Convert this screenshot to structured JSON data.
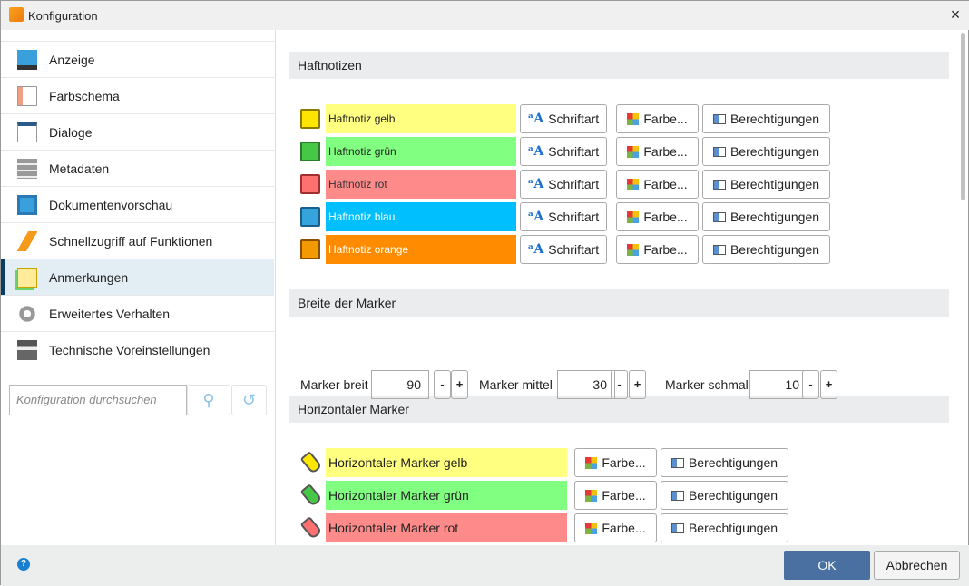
{
  "window": {
    "title": "Konfiguration",
    "close": "×"
  },
  "sidebar": {
    "items": [
      {
        "label": "Anzeige",
        "icon": "monitor-icon"
      },
      {
        "label": "Farbschema",
        "icon": "color-scheme-icon"
      },
      {
        "label": "Dialoge",
        "icon": "dialog-eye-icon"
      },
      {
        "label": "Metadaten",
        "icon": "metadata-list-icon"
      },
      {
        "label": "Dokumentenvorschau",
        "icon": "document-icon"
      },
      {
        "label": "Schnellzugriff auf Funktionen",
        "icon": "lightning-icon"
      },
      {
        "label": "Anmerkungen",
        "icon": "sticky-notes-icon",
        "selected": true
      },
      {
        "label": "Erweitertes Verhalten",
        "icon": "gears-icon"
      },
      {
        "label": "Technische Voreinstellungen",
        "icon": "technician-icon"
      }
    ],
    "search_placeholder": "Konfiguration durchsuchen"
  },
  "sections": {
    "notes": "Haftnotizen",
    "marker_width": "Breite der Marker",
    "horizontal": "Horizontaler Marker"
  },
  "buttons": {
    "font": "Schriftart",
    "color": "Farbe...",
    "permissions": "Berechtigungen"
  },
  "notes": [
    {
      "label": "Haftnotiz gelb",
      "bg": "#ffff80",
      "icon": "#ffe600",
      "border": "#8a7a00",
      "text": "#222"
    },
    {
      "label": "Haftnotiz grün",
      "bg": "#80ff80",
      "icon": "#46c846",
      "border": "#2c7a2c",
      "text": "#222"
    },
    {
      "label": "Haftnotiz rot",
      "bg": "#ff8a8a",
      "icon": "#ff7070",
      "border": "#a03030",
      "text": "#333"
    },
    {
      "label": "Haftnotiz blau",
      "bg": "#00bfff",
      "icon": "#36a4dc",
      "border": "#1a5f8a",
      "text": "#fff"
    },
    {
      "label": "Haftnotiz orange",
      "bg": "#ff8c00",
      "icon": "#f29a00",
      "border": "#8a5000",
      "text": "#fff"
    }
  ],
  "marker_widths": [
    {
      "label": "Marker breit",
      "value": "90"
    },
    {
      "label": "Marker mittel",
      "value": "30"
    },
    {
      "label": "Marker schmal",
      "value": "10"
    }
  ],
  "stepper": {
    "minus": "-",
    "plus": "+"
  },
  "markers": [
    {
      "label": "Horizontaler Marker gelb",
      "bg": "#ffff80",
      "icon": "#ffe600"
    },
    {
      "label": "Horizontaler Marker grün",
      "bg": "#80ff80",
      "icon": "#46c846"
    },
    {
      "label": "Horizontaler Marker rot",
      "bg": "#ff8a8a",
      "icon": "#ff7070"
    }
  ],
  "footer": {
    "help": "?",
    "ok": "OK",
    "cancel": "Abbrechen"
  }
}
